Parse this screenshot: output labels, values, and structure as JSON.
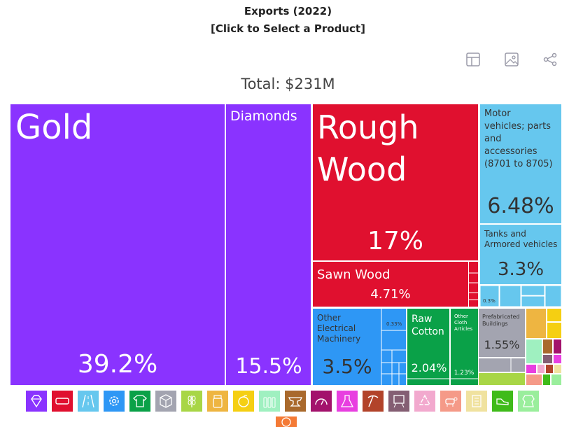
{
  "header": {
    "title": "Exports (2022)",
    "subtitle": "[Click to Select a Product]"
  },
  "total_label": "Total: $231M",
  "toolbar": {
    "icons": [
      "table-icon",
      "image-icon",
      "share-icon"
    ]
  },
  "chart_data": {
    "type": "treemap",
    "total": "$231M",
    "tiles": [
      {
        "label": "Gold",
        "value_text": "39.2%",
        "value": 39.2,
        "color": "#8a33ff"
      },
      {
        "label": "Diamonds",
        "value_text": "15.5%",
        "value": 15.5,
        "color": "#8a33ff"
      },
      {
        "label": "Rough Wood",
        "value_text": "17%",
        "value": 17,
        "color": "#e0102f"
      },
      {
        "label": "Motor vehicles; parts and accessories (8701 to 8705)",
        "value_text": "6.48%",
        "value": 6.48,
        "color": "#66c7ee"
      },
      {
        "label": "Tanks and Armored vehicles",
        "value_text": "3.3%",
        "value": 3.3,
        "color": "#66c7ee"
      },
      {
        "label": "",
        "value_text": "0.3%",
        "value": 0.3,
        "color": "#66c7ee"
      },
      {
        "label": "Sawn Wood",
        "value_text": "4.71%",
        "value": 4.71,
        "color": "#e0102f"
      },
      {
        "label": "Other Electrical Machinery",
        "value_text": "3.5%",
        "value": 3.5,
        "color": "#2e97f5"
      },
      {
        "label": "",
        "value_text": "0.33%",
        "value": 0.33,
        "color": "#2e97f5"
      },
      {
        "label": "Raw Cotton",
        "value_text": "2.04%",
        "value": 2.04,
        "color": "#0aa148"
      },
      {
        "label": "Other Cloth Articles",
        "value_text": "1.23%",
        "value": 1.23,
        "color": "#0aa148"
      },
      {
        "label": "Prefabricated Buildings",
        "value_text": "1.55%",
        "value": 1.55,
        "color": "#a3a4b0"
      }
    ]
  },
  "legend": [
    {
      "name": "diamond-icon",
      "color": "#8a33ff"
    },
    {
      "name": "tag-icon",
      "color": "#e0102f"
    },
    {
      "name": "road-icon",
      "color": "#66c7ee"
    },
    {
      "name": "gear-icon",
      "color": "#2e97f5"
    },
    {
      "name": "shirt-icon",
      "color": "#0aa148"
    },
    {
      "name": "box-icon",
      "color": "#a3a4b0"
    },
    {
      "name": "wheat-icon",
      "color": "#a8d646"
    },
    {
      "name": "jar-icon",
      "color": "#eeb541"
    },
    {
      "name": "orange-icon",
      "color": "#f5cf12"
    },
    {
      "name": "bottles-icon",
      "color": "#9ff0c0"
    },
    {
      "name": "anvil-icon",
      "color": "#a9692c"
    },
    {
      "name": "gauge-icon",
      "color": "#a3126c"
    },
    {
      "name": "flask-icon",
      "color": "#e83fe0"
    },
    {
      "name": "pickaxe-icon",
      "color": "#b2432a"
    },
    {
      "name": "easel-icon",
      "color": "#845e73"
    },
    {
      "name": "recycle-icon",
      "color": "#f2a9ce"
    },
    {
      "name": "cow-icon",
      "color": "#f59a88"
    },
    {
      "name": "scroll-icon",
      "color": "#f0e29f"
    },
    {
      "name": "shoe-icon",
      "color": "#3fbb1a"
    },
    {
      "name": "leather-icon",
      "color": "#9aee9c"
    },
    {
      "name": "misc-icon",
      "color": "#f47a35"
    }
  ]
}
